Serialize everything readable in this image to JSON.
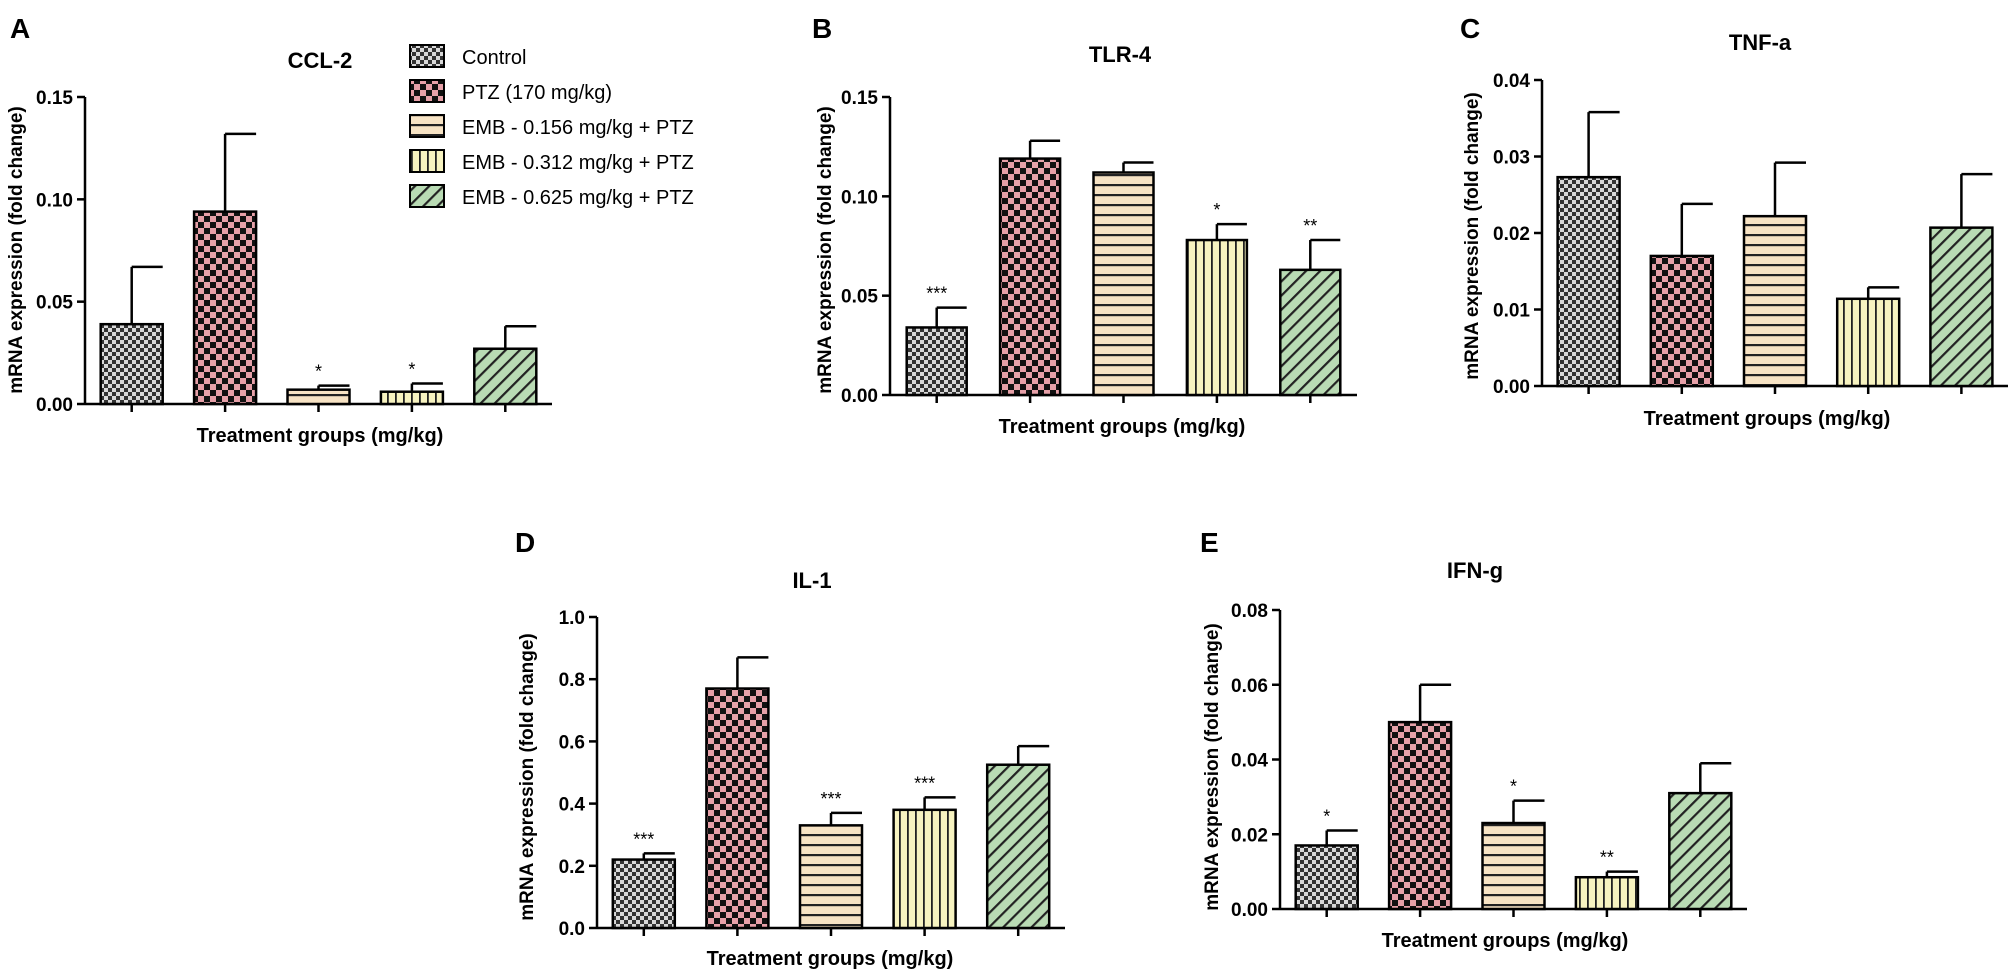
{
  "legend": [
    {
      "label": "Control",
      "pattern": "checker-gray",
      "color": "#d9d9d9"
    },
    {
      "label": "PTZ (170 mg/kg)",
      "pattern": "checker-red",
      "color": "#e6a0a8"
    },
    {
      "label": "EMB - 0.156 mg/kg + PTZ",
      "pattern": "hstripe",
      "color": "#f7e3c4"
    },
    {
      "label": "EMB - 0.312 mg/kg + PTZ",
      "pattern": "vstripe",
      "color": "#f7f3c0"
    },
    {
      "label": "EMB - 0.625 mg/kg + PTZ",
      "pattern": "diag",
      "color": "#b9dbb4"
    }
  ],
  "chart_data": [
    {
      "type": "bar",
      "panel": "A",
      "title": "CCL-2",
      "xlabel": "Treatment groups (mg/kg)",
      "ylabel": "mRNA expression (fold change)",
      "ylim": [
        0,
        0.15
      ],
      "yticks": [
        "0.00",
        "0.05",
        "0.10",
        "0.15"
      ],
      "values": [
        0.039,
        0.094,
        0.007,
        0.006,
        0.027
      ],
      "errors": [
        0.028,
        0.038,
        0.002,
        0.004,
        0.011
      ],
      "significance": [
        "",
        "",
        "*",
        "*",
        ""
      ]
    },
    {
      "type": "bar",
      "panel": "B",
      "title": "TLR-4",
      "xlabel": "Treatment groups (mg/kg)",
      "ylabel": "mRNA expression (fold change)",
      "ylim": [
        0,
        0.15
      ],
      "yticks": [
        "0.00",
        "0.05",
        "0.10",
        "0.15"
      ],
      "values": [
        0.034,
        0.119,
        0.112,
        0.078,
        0.063
      ],
      "errors": [
        0.01,
        0.009,
        0.005,
        0.008,
        0.015
      ],
      "significance": [
        "***",
        "",
        "",
        "*",
        "**"
      ]
    },
    {
      "type": "bar",
      "panel": "C",
      "title": "TNF-a",
      "xlabel": "Treatment groups (mg/kg)",
      "ylabel": "mRNA expression (fold change)",
      "ylim": [
        0,
        0.04
      ],
      "yticks": [
        "0.00",
        "0.01",
        "0.02",
        "0.03",
        "0.04"
      ],
      "values": [
        0.0273,
        0.017,
        0.0222,
        0.0114,
        0.0207
      ],
      "errors": [
        0.0085,
        0.0068,
        0.007,
        0.0015,
        0.007
      ],
      "significance": [
        "",
        "",
        "",
        "",
        ""
      ]
    },
    {
      "type": "bar",
      "panel": "D",
      "title": "IL-1",
      "xlabel": "Treatment groups (mg/kg)",
      "ylabel": "mRNA expression (fold change)",
      "ylim": [
        0,
        1.0
      ],
      "yticks": [
        "0.0",
        "0.2",
        "0.4",
        "0.6",
        "0.8",
        "1.0"
      ],
      "values": [
        0.22,
        0.77,
        0.33,
        0.38,
        0.525
      ],
      "errors": [
        0.02,
        0.1,
        0.04,
        0.04,
        0.06
      ],
      "significance": [
        "***",
        "",
        "***",
        "***",
        ""
      ]
    },
    {
      "type": "bar",
      "panel": "E",
      "title": "IFN-g",
      "xlabel": "Treatment groups (mg/kg)",
      "ylabel": "mRNA expression (fold change)",
      "ylim": [
        0,
        0.08
      ],
      "yticks": [
        "0.00",
        "0.02",
        "0.04",
        "0.06",
        "0.08"
      ],
      "values": [
        0.017,
        0.05,
        0.023,
        0.0085,
        0.031
      ],
      "errors": [
        0.004,
        0.01,
        0.006,
        0.0015,
        0.008
      ],
      "significance": [
        "*",
        "",
        "*",
        "**",
        ""
      ]
    }
  ]
}
